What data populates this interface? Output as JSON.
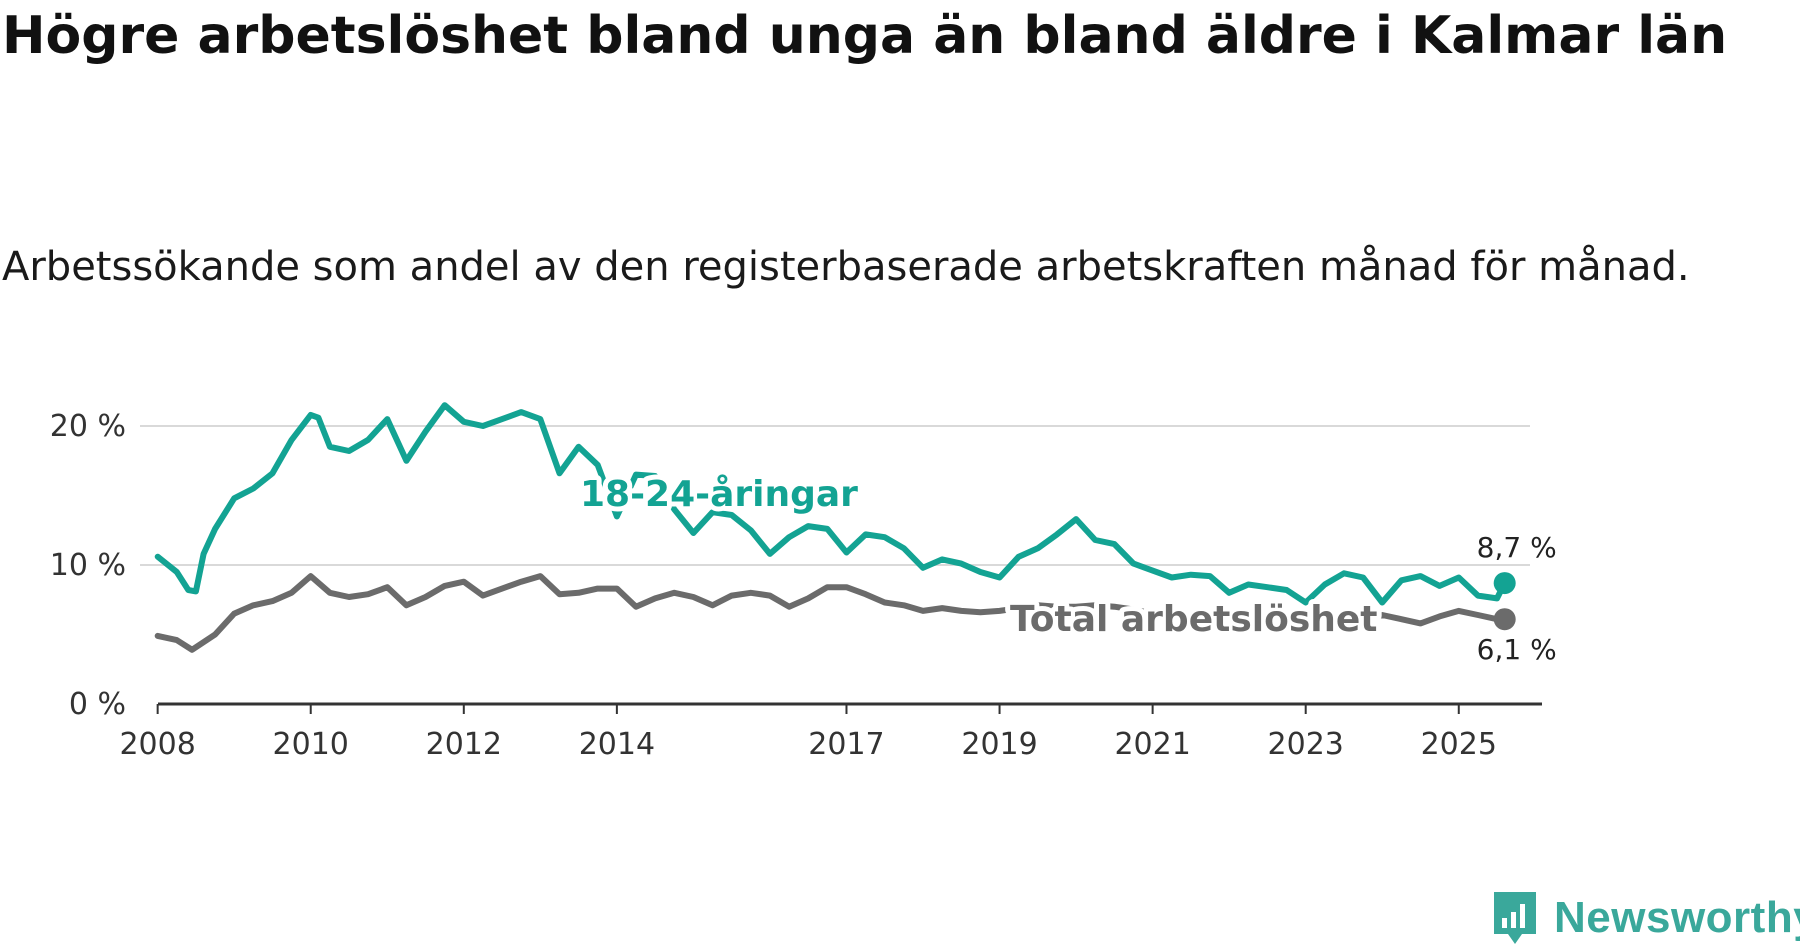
{
  "title": "Högre arbetslöshet bland unga än bland äldre i Kalmar län",
  "subtitle": "Arbetssökande som andel av den registerbaserade arbetskraften månad för månad.",
  "brand": {
    "name": "Newsworthy"
  },
  "colors": {
    "youth": "#13a393",
    "total": "#6b6b6b",
    "grid": "#d9d9d9",
    "axis": "#333333"
  },
  "chart_data": {
    "type": "line",
    "title": "Högre arbetslöshet bland unga än bland äldre i Kalmar län",
    "subtitle": "Arbetssökande som andel av den registerbaserade arbetskraften månad för månad.",
    "xlabel": "",
    "ylabel": "",
    "xlim": [
      2007.9,
      2025.8
    ],
    "ylim": [
      0,
      20
    ],
    "y_ticks": [
      0,
      10,
      20
    ],
    "y_tick_labels": [
      "0 %",
      "10 %",
      "20 %"
    ],
    "x_ticks": [
      2008,
      2010,
      2012,
      2014,
      2017,
      2019,
      2021,
      2023,
      2025
    ],
    "x_tick_labels": [
      "2008",
      "2010",
      "2012",
      "2014",
      "2017",
      "2019",
      "2021",
      "2023",
      "2025"
    ],
    "grid": true,
    "series": [
      {
        "name": "18-24-åringar",
        "label": "18-24-åringar",
        "end_value": 8.7,
        "end_label": "8,7 %",
        "x": [
          2008.0,
          2008.25,
          2008.4,
          2008.5,
          2008.6,
          2008.75,
          2009.0,
          2009.25,
          2009.5,
          2009.75,
          2010.0,
          2010.1,
          2010.25,
          2010.5,
          2010.75,
          2011.0,
          2011.25,
          2011.5,
          2011.75,
          2012.0,
          2012.25,
          2012.5,
          2012.75,
          2013.0,
          2013.25,
          2013.5,
          2013.75,
          2014.0,
          2014.25,
          2014.5,
          2014.75,
          2015.0,
          2015.25,
          2015.5,
          2015.75,
          2016.0,
          2016.25,
          2016.5,
          2016.75,
          2017.0,
          2017.25,
          2017.5,
          2017.75,
          2018.0,
          2018.25,
          2018.5,
          2018.75,
          2019.0,
          2019.25,
          2019.5,
          2019.75,
          2020.0,
          2020.25,
          2020.5,
          2020.75,
          2021.0,
          2021.25,
          2021.5,
          2021.75,
          2022.0,
          2022.25,
          2022.5,
          2022.75,
          2023.0,
          2023.25,
          2023.5,
          2023.75,
          2024.0,
          2024.25,
          2024.5,
          2024.75,
          2025.0,
          2025.25,
          2025.5,
          2025.6
        ],
        "values": [
          10.6,
          9.5,
          8.2,
          8.1,
          10.8,
          12.6,
          14.8,
          15.5,
          16.6,
          19.0,
          20.8,
          20.6,
          18.5,
          18.2,
          19.0,
          20.5,
          17.5,
          19.6,
          21.5,
          20.3,
          20.0,
          20.5,
          21.0,
          20.5,
          16.6,
          18.5,
          17.2,
          13.5,
          16.5,
          16.4,
          14.0,
          12.3,
          13.8,
          13.6,
          12.5,
          10.8,
          12.0,
          12.8,
          12.6,
          10.9,
          12.2,
          12.0,
          11.2,
          9.8,
          10.4,
          10.1,
          9.5,
          9.1,
          10.6,
          11.2,
          12.2,
          13.3,
          11.8,
          11.5,
          10.1,
          9.6,
          9.1,
          9.3,
          9.2,
          8.0,
          8.6,
          8.4,
          8.2,
          7.3,
          8.6,
          9.4,
          9.1,
          7.3,
          8.9,
          9.2,
          8.5,
          9.1,
          7.8,
          7.6,
          8.7
        ]
      },
      {
        "name": "Total arbetslöshet",
        "label": "Total arbetslöshet",
        "end_value": 6.1,
        "end_label": "6,1 %",
        "x": [
          2008.0,
          2008.25,
          2008.45,
          2008.75,
          2009.0,
          2009.25,
          2009.5,
          2009.75,
          2010.0,
          2010.25,
          2010.5,
          2010.75,
          2011.0,
          2011.25,
          2011.5,
          2011.75,
          2012.0,
          2012.25,
          2012.5,
          2012.75,
          2013.0,
          2013.25,
          2013.5,
          2013.75,
          2014.0,
          2014.25,
          2014.5,
          2014.75,
          2015.0,
          2015.25,
          2015.5,
          2015.75,
          2016.0,
          2016.25,
          2016.5,
          2016.75,
          2017.0,
          2017.25,
          2017.5,
          2017.75,
          2018.0,
          2018.25,
          2018.5,
          2018.75,
          2019.0,
          2019.25,
          2019.5,
          2019.75,
          2020.0,
          2020.25,
          2020.5,
          2020.75,
          2021.0,
          2021.25,
          2021.5,
          2021.75,
          2022.0,
          2022.25,
          2022.5,
          2022.75,
          2023.0,
          2023.25,
          2023.5,
          2023.75,
          2024.0,
          2024.25,
          2024.5,
          2024.75,
          2025.0,
          2025.25,
          2025.5,
          2025.6
        ],
        "values": [
          4.9,
          4.6,
          3.9,
          5.0,
          6.5,
          7.1,
          7.4,
          8.0,
          9.2,
          8.0,
          7.7,
          7.9,
          8.4,
          7.1,
          7.7,
          8.5,
          8.8,
          7.8,
          8.3,
          8.8,
          9.2,
          7.9,
          8.0,
          8.3,
          8.3,
          7.0,
          7.6,
          8.0,
          7.7,
          7.1,
          7.8,
          8.0,
          7.8,
          7.0,
          7.6,
          8.4,
          8.4,
          7.9,
          7.3,
          7.1,
          6.7,
          6.9,
          6.7,
          6.6,
          6.7,
          6.9,
          7.1,
          7.0,
          7.0,
          7.1,
          7.0,
          6.8,
          6.5,
          6.4,
          6.2,
          6.2,
          6.4,
          5.8,
          5.9,
          6.1,
          6.2,
          5.5,
          5.8,
          6.0,
          6.4,
          6.1,
          5.8,
          6.3,
          6.7,
          6.4,
          6.1,
          6.1
        ]
      }
    ]
  }
}
